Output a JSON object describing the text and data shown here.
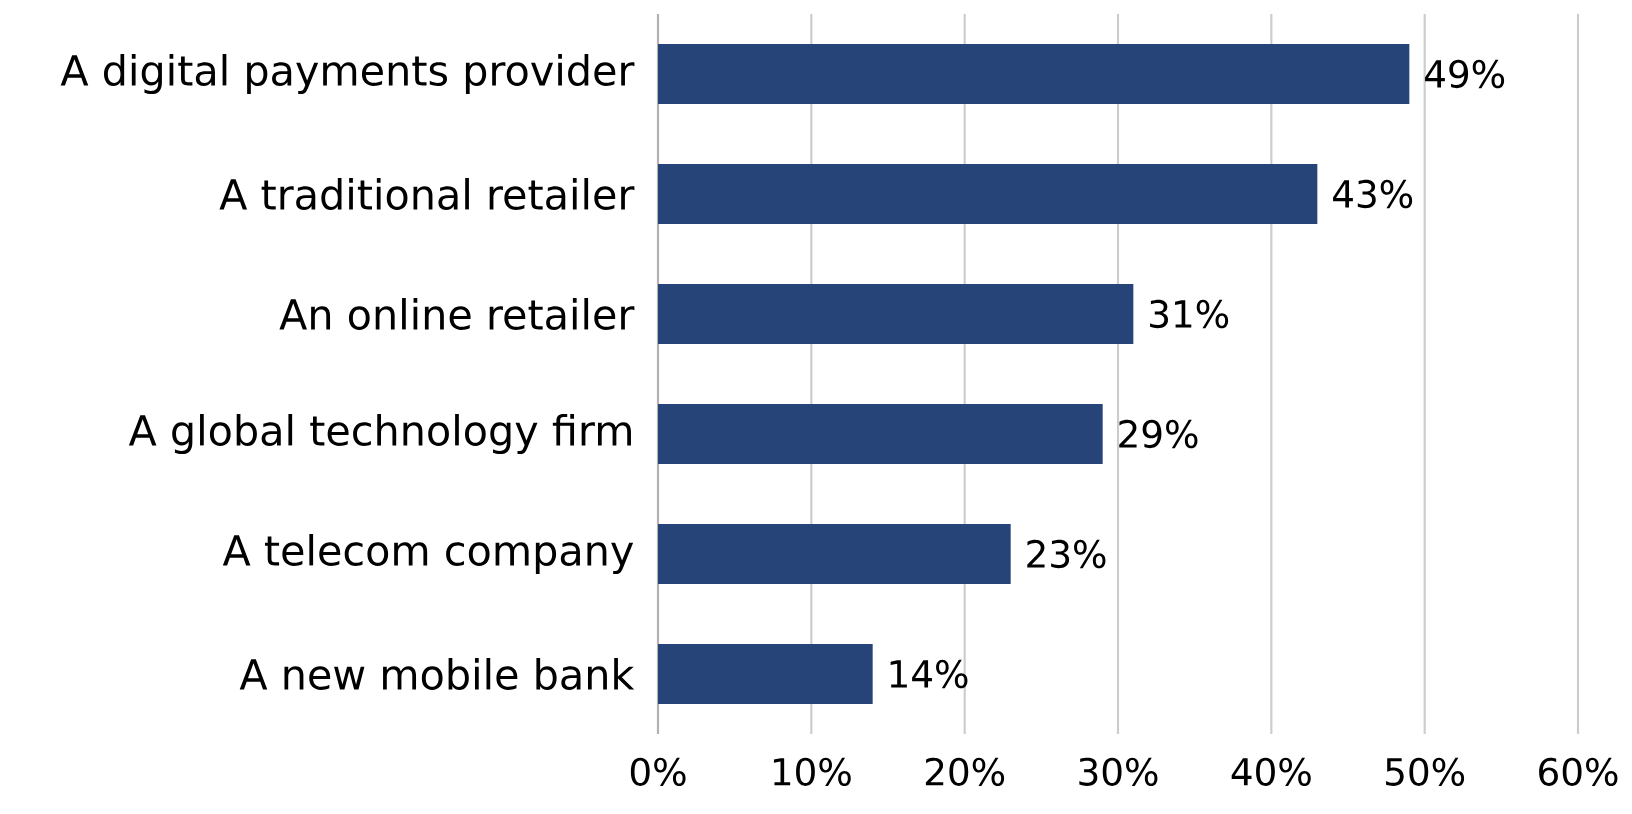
{
  "chart_data": {
    "type": "bar",
    "orientation": "horizontal",
    "categories": [
      "A digital payments provider",
      "A traditional retailer",
      "An online retailer",
      "A global technology firm",
      "A telecom company",
      "A new mobile bank"
    ],
    "values": [
      49,
      43,
      31,
      29,
      23,
      14
    ],
    "value_labels": [
      "49%",
      "43%",
      "31%",
      "29%",
      "23%",
      "14%"
    ],
    "color": "#264478",
    "xlim": [
      0,
      60
    ],
    "xticks": [
      {
        "value": 0,
        "label": "0%"
      },
      {
        "value": 10,
        "label": "10%"
      },
      {
        "value": 20,
        "label": "20%"
      },
      {
        "value": 30,
        "label": "30%"
      },
      {
        "value": 40,
        "label": "40%"
      },
      {
        "value": 50,
        "label": "50%"
      },
      {
        "value": 60,
        "label": "60%"
      }
    ],
    "grid": "x"
  }
}
